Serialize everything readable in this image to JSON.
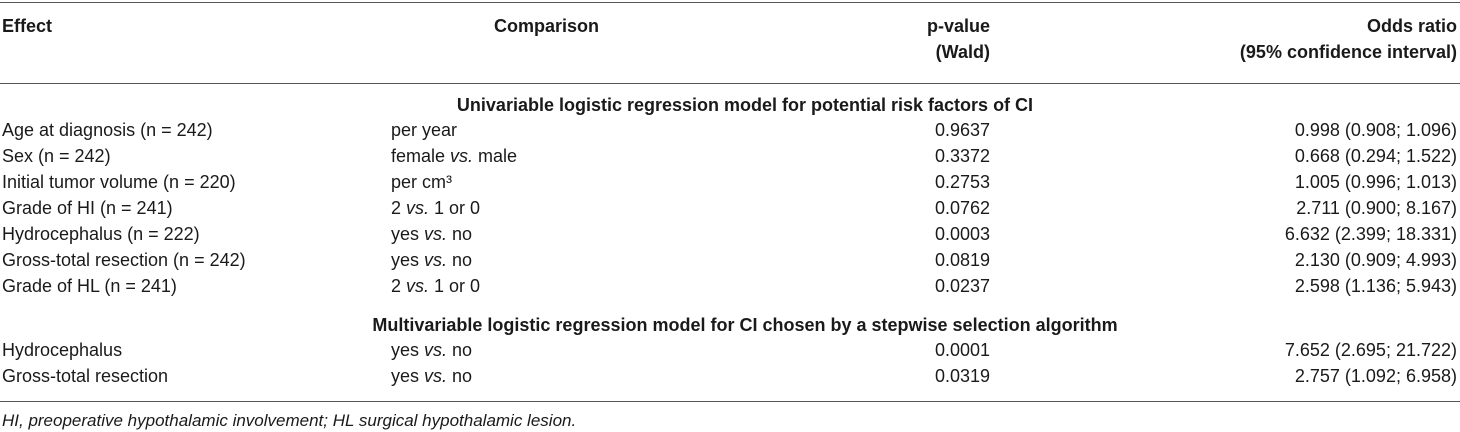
{
  "table": {
    "headers": {
      "effect": "Effect",
      "comparison": "Comparison",
      "pvalue_line1": "p-value",
      "pvalue_line2": "(Wald)",
      "odds_line1": "Odds ratio",
      "odds_line2": "(95% confidence interval)"
    },
    "sections": [
      {
        "title": "Univariable logistic regression model for potential risk factors of CI",
        "rows": [
          {
            "effect": "Age at diagnosis (n = 242)",
            "comp_pre": "per year",
            "comp_ital": "",
            "comp_post": "",
            "p": "0.9637",
            "or": "0.998 (0.908; 1.096)"
          },
          {
            "effect": "Sex (n = 242)",
            "comp_pre": "female ",
            "comp_ital": "vs.",
            "comp_post": " male",
            "p": "0.3372",
            "or": "0.668 (0.294; 1.522)"
          },
          {
            "effect": "Initial tumor volume (n = 220)",
            "comp_pre": "per cm³",
            "comp_ital": "",
            "comp_post": "",
            "p": "0.2753",
            "or": "1.005 (0.996; 1.013)"
          },
          {
            "effect": "Grade of HI (n = 241)",
            "comp_pre": "2 ",
            "comp_ital": "vs.",
            "comp_post": " 1 or 0",
            "p": "0.0762",
            "or": "2.711 (0.900; 8.167)"
          },
          {
            "effect": "Hydrocephalus (n = 222)",
            "comp_pre": "yes ",
            "comp_ital": "vs.",
            "comp_post": " no",
            "p": "0.0003",
            "or": "6.632 (2.399; 18.331)"
          },
          {
            "effect": "Gross-total resection (n = 242)",
            "comp_pre": "yes ",
            "comp_ital": "vs.",
            "comp_post": " no",
            "p": "0.0819",
            "or": "2.130 (0.909; 4.993)"
          },
          {
            "effect": "Grade of HL (n = 241)",
            "comp_pre": "2 ",
            "comp_ital": "vs.",
            "comp_post": " 1 or 0",
            "p": "0.0237",
            "or": "2.598 (1.136; 5.943)"
          }
        ]
      },
      {
        "title": "Multivariable logistic regression model for CI chosen by a stepwise selection algorithm",
        "rows": [
          {
            "effect": "Hydrocephalus",
            "comp_pre": "yes ",
            "comp_ital": "vs.",
            "comp_post": " no",
            "p": "0.0001",
            "or": "7.652 (2.695; 21.722)"
          },
          {
            "effect": "Gross-total resection",
            "comp_pre": "yes ",
            "comp_ital": "vs.",
            "comp_post": " no",
            "p": "0.0319",
            "or": "2.757 (1.092; 6.958)"
          }
        ]
      }
    ],
    "footnote": "HI, preoperative hypothalamic involvement; HL surgical hypothalamic lesion."
  }
}
